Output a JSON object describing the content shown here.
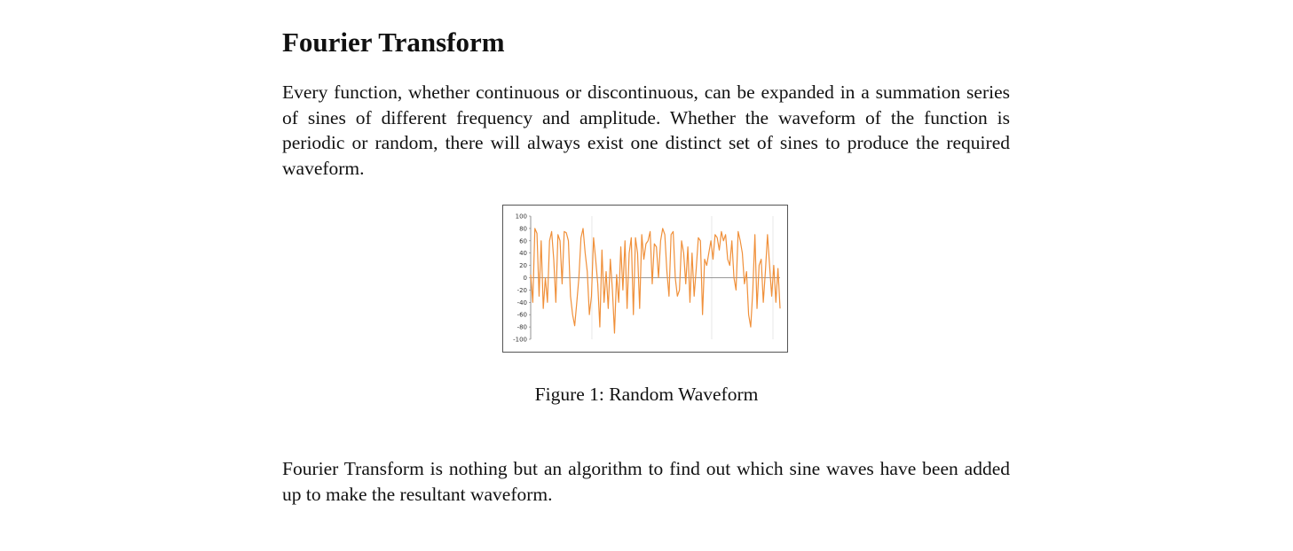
{
  "section_title": "Fourier Transform",
  "paragraph_1": "Every function, whether continuous or discontinuous, can be expanded in a summation series of sines of different frequency and amplitude. Whether the waveform of the function is periodic or random, there will always exist one distinct set of sines to produce the required waveform.",
  "figure_caption": "Figure 1: Random Waveform",
  "paragraph_2": "Fourier Transform is nothing but an algorithm to find out which sine waves have been added up to make the resultant waveform.",
  "chart_data": {
    "type": "line",
    "title": "",
    "xlabel": "",
    "ylabel": "",
    "ylim": [
      -100,
      100
    ],
    "y_ticks": [
      "100",
      "80",
      "60",
      "40",
      "20",
      "0",
      "-20",
      "-40",
      "-60",
      "-80",
      "-100"
    ],
    "grid": false,
    "series_color": "#f0903a",
    "values": [
      5,
      -40,
      80,
      72,
      -30,
      60,
      -50,
      0,
      -40,
      60,
      75,
      30,
      -40,
      70,
      60,
      -10,
      75,
      73,
      60,
      -30,
      -60,
      -78,
      -40,
      0,
      65,
      80,
      40,
      10,
      -60,
      -30,
      65,
      30,
      -10,
      -80,
      45,
      -40,
      10,
      -50,
      30,
      -20,
      -90,
      5,
      -40,
      50,
      -20,
      60,
      -50,
      40,
      65,
      -60,
      65,
      40,
      -50,
      70,
      30,
      55,
      60,
      75,
      -10,
      55,
      50,
      0,
      60,
      80,
      70,
      10,
      -30,
      70,
      75,
      0,
      -30,
      -20,
      60,
      40,
      -10,
      50,
      -40,
      40,
      -30,
      15,
      65,
      60,
      -60,
      30,
      20,
      40,
      60,
      30,
      70,
      65,
      45,
      75,
      60,
      70,
      30,
      20,
      60,
      0,
      -20,
      75,
      60,
      40,
      -10,
      10,
      -60,
      -80,
      -20,
      70,
      -50,
      20,
      30,
      -40,
      10,
      70,
      20,
      -30,
      20,
      -40,
      15,
      -50
    ]
  }
}
